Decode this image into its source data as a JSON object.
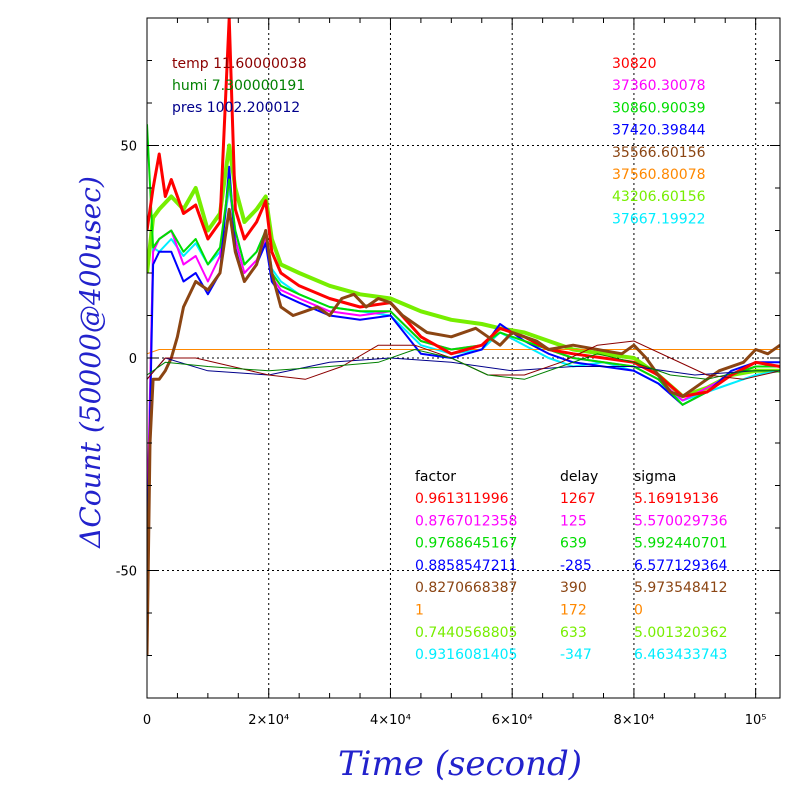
{
  "chart_data": {
    "type": "line",
    "title": "",
    "xlabel": "Time (second)",
    "ylabel": "ΔCount (50000@400usec)",
    "xlim": [
      0,
      104000
    ],
    "ylim": [
      -80,
      80
    ],
    "x_ticks": [
      {
        "value": 0,
        "label": "0"
      },
      {
        "value": 20000,
        "label": "2×10⁴"
      },
      {
        "value": 40000,
        "label": "4×10⁴"
      },
      {
        "value": 60000,
        "label": "6×10⁴"
      },
      {
        "value": 80000,
        "label": "8×10⁴"
      },
      {
        "value": 100000,
        "label": "10⁵"
      }
    ],
    "y_ticks": [
      {
        "value": 50,
        "label": "50"
      },
      {
        "value": 0,
        "label": "0"
      },
      {
        "value": -50,
        "label": "-50"
      }
    ],
    "grid": true,
    "env_legend": [
      {
        "text": "temp 11.60000038",
        "color": "#8b0000"
      },
      {
        "text": "humi 7.300000191",
        "color": "#008000"
      },
      {
        "text": "pres 1002.200012",
        "color": "#00008b"
      }
    ],
    "count_legend": [
      {
        "text": "30820",
        "color": "#ff0000"
      },
      {
        "text": "37360.30078",
        "color": "#ff00ff"
      },
      {
        "text": "30860.90039",
        "color": "#00dd00"
      },
      {
        "text": "37420.39844",
        "color": "#0000ff"
      },
      {
        "text": "35566.60156",
        "color": "#8b4513"
      },
      {
        "text": "37560.80078",
        "color": "#ff8800"
      },
      {
        "text": "43206.60156",
        "color": "#77ee00"
      },
      {
        "text": "37667.19922",
        "color": "#00eeff"
      }
    ],
    "fit_table": {
      "headers": [
        "factor",
        "delay",
        "sigma"
      ],
      "rows": [
        {
          "factor": "0.961311996",
          "delay": "1267",
          "sigma": "5.16919136",
          "color": "#ff0000"
        },
        {
          "factor": "0.8767012358",
          "delay": "125",
          "sigma": "5.570029736",
          "color": "#ff00ff"
        },
        {
          "factor": "0.9768645167",
          "delay": "639",
          "sigma": "5.992440701",
          "color": "#00dd00"
        },
        {
          "factor": "0.8858547211",
          "delay": "-285",
          "sigma": "6.577129364",
          "color": "#0000ff"
        },
        {
          "factor": "0.8270668387",
          "delay": "390",
          "sigma": "5.973548412",
          "color": "#8b4513"
        },
        {
          "factor": "1",
          "delay": "172",
          "sigma": "0",
          "color": "#ff8800"
        },
        {
          "factor": "0.7440568805",
          "delay": "633",
          "sigma": "5.001320362",
          "color": "#77ee00"
        },
        {
          "factor": "0.9316081405",
          "delay": "-347",
          "sigma": "6.463433743",
          "color": "#00eeff"
        }
      ]
    },
    "series": [
      {
        "name": "43206.60156",
        "color": "#77ee00",
        "width": 4,
        "x": [
          0,
          1000,
          2000,
          4000,
          6000,
          8000,
          10000,
          12000,
          13500,
          14500,
          16000,
          18000,
          19500,
          20500,
          22000,
          25000,
          30000,
          35000,
          40000,
          45000,
          50000,
          55000,
          58000,
          62000,
          66000,
          70000,
          75000,
          80000,
          84000,
          88000,
          92000,
          96000,
          100000,
          104000
        ],
        "y": [
          20,
          33,
          35,
          38,
          35,
          40,
          30,
          34,
          50,
          40,
          32,
          35,
          38,
          28,
          22,
          20,
          17,
          15,
          14,
          11,
          9,
          8,
          7,
          6,
          4,
          2,
          1,
          0,
          -4,
          -9,
          -7,
          -4,
          -3,
          -3
        ]
      },
      {
        "name": "37667.19922",
        "color": "#00eeff",
        "width": 2,
        "x": [
          0,
          1000,
          2000,
          4000,
          6000,
          8000,
          10000,
          12000,
          13500,
          14500,
          16000,
          18000,
          19500,
          20500,
          22000,
          25000,
          30000,
          35000,
          40000,
          45000,
          50000,
          55000,
          58000,
          62000,
          66000,
          70000,
          75000,
          80000,
          84000,
          88000,
          92000,
          96000,
          100000,
          104000
        ],
        "y": [
          -45,
          26,
          25,
          28,
          24,
          27,
          22,
          25,
          40,
          30,
          22,
          25,
          30,
          21,
          18,
          15,
          12,
          11,
          10,
          3,
          1,
          2,
          6,
          3,
          0,
          -2,
          -1,
          -3,
          -6,
          -10,
          -8,
          -6,
          -4,
          -3
        ]
      },
      {
        "name": "37560.80078",
        "color": "#ff8800",
        "width": 1,
        "x": [
          0,
          2000,
          104000
        ],
        "y": [
          1,
          2,
          2
        ]
      },
      {
        "name": "37360.30078",
        "color": "#ff00ff",
        "width": 2,
        "x": [
          0,
          1000,
          2000,
          4000,
          6000,
          8000,
          10000,
          12000,
          13500,
          14500,
          16000,
          18000,
          19500,
          20500,
          22000,
          25000,
          30000,
          35000,
          40000,
          45000,
          50000,
          55000,
          58000,
          62000,
          66000,
          70000,
          75000,
          80000,
          84000,
          88000,
          92000,
          96000,
          100000,
          104000
        ],
        "y": [
          -40,
          25,
          28,
          30,
          22,
          24,
          18,
          24,
          42,
          28,
          20,
          23,
          28,
          19,
          16,
          14,
          11,
          10,
          11,
          4,
          2,
          3,
          7,
          5,
          2,
          0,
          -1,
          -2,
          -5,
          -10,
          -7,
          -4,
          -2,
          -2
        ]
      },
      {
        "name": "37420.39844",
        "color": "#0000ff",
        "width": 2,
        "x": [
          0,
          1000,
          2000,
          4000,
          6000,
          8000,
          10000,
          12000,
          13500,
          14500,
          16000,
          18000,
          19500,
          20500,
          22000,
          25000,
          30000,
          35000,
          40000,
          45000,
          50000,
          55000,
          58000,
          62000,
          66000,
          70000,
          75000,
          80000,
          84000,
          88000,
          92000,
          96000,
          100000,
          104000
        ],
        "y": [
          -50,
          22,
          25,
          25,
          18,
          20,
          15,
          20,
          45,
          26,
          18,
          22,
          27,
          18,
          15,
          13,
          10,
          9,
          10,
          1,
          0,
          2,
          8,
          4,
          1,
          -1,
          -2,
          -3,
          -6,
          -11,
          -8,
          -3,
          -1,
          -1
        ]
      },
      {
        "name": "30860.90039",
        "color": "#00dd00",
        "width": 2,
        "x": [
          0,
          1000,
          2000,
          4000,
          6000,
          8000,
          10000,
          12000,
          13500,
          14500,
          16000,
          18000,
          19500,
          20500,
          22000,
          25000,
          30000,
          35000,
          40000,
          45000,
          50000,
          55000,
          58000,
          62000,
          66000,
          70000,
          75000,
          80000,
          84000,
          88000,
          92000,
          96000,
          100000,
          104000
        ],
        "y": [
          55,
          26,
          28,
          30,
          25,
          28,
          22,
          26,
          42,
          30,
          22,
          25,
          30,
          20,
          17,
          15,
          12,
          11,
          11,
          4,
          2,
          3,
          6,
          4,
          2,
          0,
          -1,
          -2,
          -5,
          -11,
          -8,
          -4,
          -2,
          -2
        ]
      },
      {
        "name": "30820",
        "color": "#ff0000",
        "width": 3,
        "x": [
          0,
          1000,
          2000,
          3000,
          4000,
          6000,
          8000,
          10000,
          12000,
          13500,
          14500,
          16000,
          18000,
          19500,
          20500,
          22000,
          25000,
          30000,
          35000,
          40000,
          45000,
          50000,
          55000,
          58000,
          62000,
          66000,
          70000,
          75000,
          80000,
          84000,
          88000,
          92000,
          96000,
          100000,
          104000
        ],
        "y": [
          30,
          40,
          48,
          38,
          42,
          34,
          36,
          28,
          32,
          80,
          35,
          28,
          32,
          37,
          25,
          20,
          17,
          14,
          12,
          13,
          5,
          1,
          3,
          7,
          5,
          2,
          1,
          0,
          -1,
          -4,
          -9,
          -8,
          -4,
          -1,
          -2
        ]
      },
      {
        "name": "35566.60156",
        "color": "#8b4513",
        "width": 3,
        "x": [
          0,
          500,
          1000,
          2000,
          3000,
          4000,
          5000,
          6000,
          8000,
          10000,
          12000,
          13500,
          14500,
          16000,
          18000,
          19500,
          20500,
          22000,
          24000,
          26000,
          28000,
          30000,
          32000,
          34000,
          36000,
          38000,
          40000,
          42000,
          44000,
          46000,
          50000,
          54000,
          58000,
          60000,
          64000,
          66000,
          70000,
          74000,
          78000,
          80000,
          82000,
          86000,
          88000,
          90000,
          94000,
          98000,
          100000,
          102000,
          104000
        ],
        "y": [
          -70,
          -20,
          -5,
          -5,
          -3,
          0,
          5,
          12,
          18,
          16,
          20,
          35,
          25,
          18,
          22,
          30,
          20,
          12,
          10,
          11,
          12,
          10,
          14,
          15,
          12,
          14,
          13,
          10,
          8,
          6,
          5,
          7,
          3,
          6,
          4,
          2,
          3,
          2,
          1,
          3,
          0,
          -8,
          -9,
          -7,
          -3,
          -1,
          2,
          1,
          3
        ]
      },
      {
        "name": "pres 1002.200012",
        "color": "#00008b",
        "width": 1,
        "x": [
          0,
          3000,
          10000,
          20000,
          30000,
          40000,
          50000,
          60000,
          70000,
          80000,
          90000,
          100000,
          104000
        ],
        "y": [
          -5,
          0,
          -3,
          -4,
          -1,
          0,
          -1,
          -3,
          -2,
          -2,
          -4,
          -3,
          -3
        ]
      },
      {
        "name": "temp 11.60000038",
        "color": "#8b0000",
        "width": 1,
        "x": [
          0,
          3000,
          8000,
          14000,
          20000,
          26000,
          32000,
          38000,
          44000,
          50000,
          56000,
          62000,
          68000,
          74000,
          80000,
          86000,
          92000,
          98000,
          104000
        ],
        "y": [
          -5,
          0,
          0,
          -2,
          -4,
          -5,
          -2,
          3,
          3,
          0,
          -4,
          -4,
          -1,
          3,
          4,
          0,
          -4,
          -5,
          -3
        ]
      },
      {
        "name": "humi 7.300000191",
        "color": "#008000",
        "width": 1,
        "x": [
          0,
          3000,
          10000,
          20000,
          30000,
          38000,
          44000,
          50000,
          56000,
          62000,
          68000,
          74000,
          80000,
          86000,
          92000,
          98000,
          104000
        ],
        "y": [
          -4,
          -1,
          -2,
          -3,
          -2,
          -1,
          2,
          0,
          -4,
          -5,
          -2,
          1,
          -1,
          -4,
          -5,
          -3,
          -3
        ]
      }
    ]
  }
}
